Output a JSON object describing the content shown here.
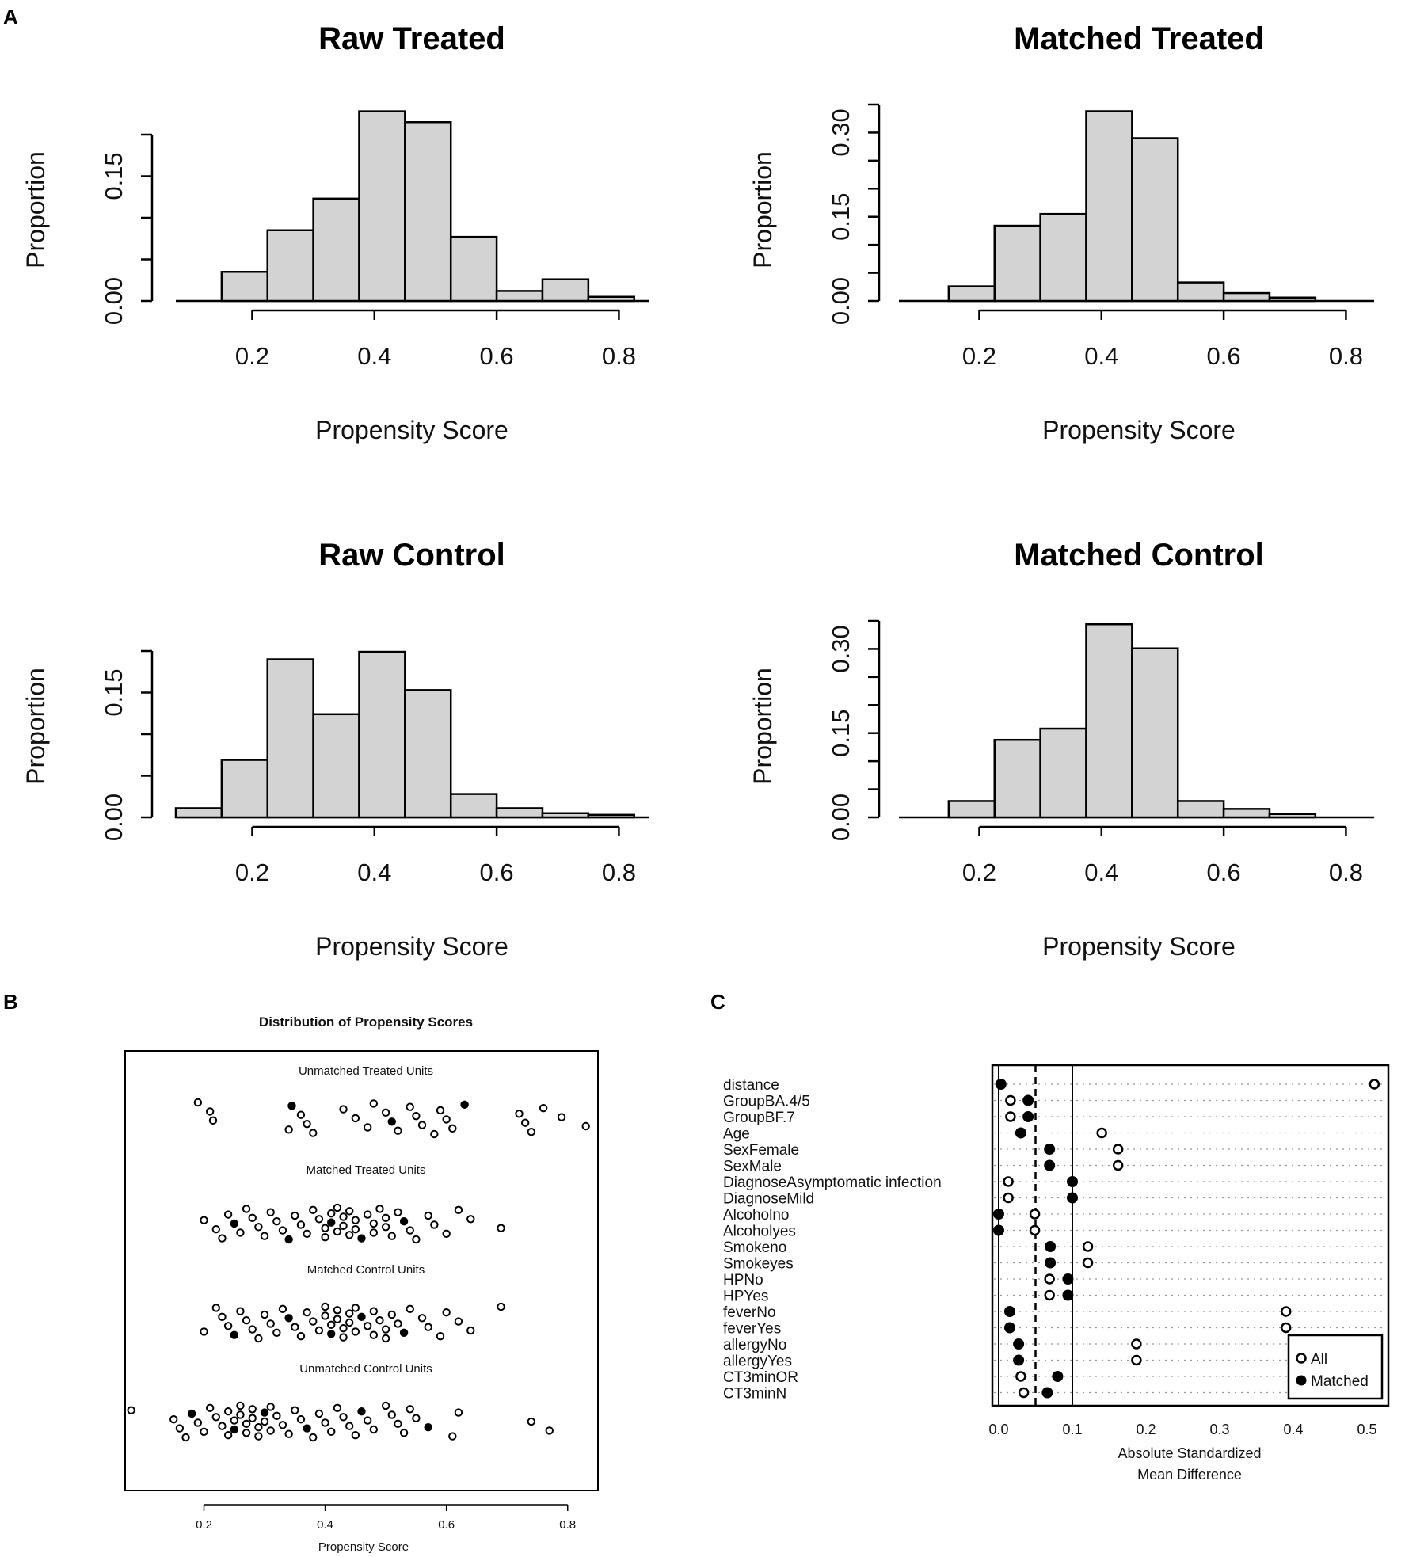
{
  "panel_labels": {
    "a": "A",
    "b": "B",
    "c": "C"
  },
  "chart_data": [
    {
      "id": "raw_treated",
      "type": "bar",
      "title": "Raw Treated",
      "xlabel": "Propensity Score",
      "ylabel": "Proportion",
      "bin_edges": [
        0.15,
        0.225,
        0.3,
        0.375,
        0.45,
        0.525,
        0.6,
        0.675,
        0.75,
        0.825
      ],
      "values": [
        0.035,
        0.085,
        0.123,
        0.228,
        0.215,
        0.077,
        0.012,
        0.026,
        0.005
      ],
      "xticks": [
        "0.2",
        "0.4",
        "0.6",
        "0.8"
      ],
      "yticks": [
        "0.00",
        "0.15"
      ],
      "xlim": [
        0.075,
        0.85
      ],
      "ylim": [
        0,
        0.2
      ]
    },
    {
      "id": "matched_treated",
      "type": "bar",
      "title": "Matched Treated",
      "xlabel": "Propensity Score",
      "ylabel": "Proportion",
      "bin_edges": [
        0.15,
        0.225,
        0.3,
        0.375,
        0.45,
        0.525,
        0.6,
        0.675,
        0.75
      ],
      "values": [
        0.026,
        0.134,
        0.155,
        0.338,
        0.29,
        0.033,
        0.014,
        0.006
      ],
      "xticks": [
        "0.2",
        "0.4",
        "0.6",
        "0.8"
      ],
      "yticks": [
        "0.00",
        "0.15",
        "0.30"
      ],
      "xlim": [
        0.075,
        0.85
      ],
      "ylim": [
        0,
        0.35
      ]
    },
    {
      "id": "raw_control",
      "type": "bar",
      "title": "Raw Control",
      "xlabel": "Propensity Score",
      "ylabel": "Proportion",
      "bin_edges": [
        0.075,
        0.15,
        0.225,
        0.3,
        0.375,
        0.45,
        0.525,
        0.6,
        0.675,
        0.75,
        0.825
      ],
      "values": [
        0.011,
        0.069,
        0.19,
        0.124,
        0.199,
        0.153,
        0.028,
        0.011,
        0.005,
        0.003
      ],
      "xticks": [
        "0.2",
        "0.4",
        "0.6",
        "0.8"
      ],
      "yticks": [
        "0.00",
        "0.15"
      ],
      "xlim": [
        0.075,
        0.85
      ],
      "ylim": [
        0,
        0.2
      ]
    },
    {
      "id": "matched_control",
      "type": "bar",
      "title": "Matched Control",
      "xlabel": "Propensity Score",
      "ylabel": "Proportion",
      "bin_edges": [
        0.15,
        0.225,
        0.3,
        0.375,
        0.45,
        0.525,
        0.6,
        0.675,
        0.75
      ],
      "values": [
        0.029,
        0.138,
        0.158,
        0.344,
        0.301,
        0.029,
        0.015,
        0.006
      ],
      "xticks": [
        "0.2",
        "0.4",
        "0.6",
        "0.8"
      ],
      "yticks": [
        "0.00",
        "0.15",
        "0.30"
      ],
      "xlim": [
        0.075,
        0.85
      ],
      "ylim": [
        0,
        0.35
      ]
    },
    {
      "id": "distribution",
      "type": "scatter",
      "title": "Distribution of Propensity Scores",
      "xlabel": "Propensity Score",
      "xticks": [
        "0.2",
        "0.4",
        "0.6",
        "0.8"
      ],
      "xlim": [
        0.07,
        0.85
      ],
      "groups": [
        {
          "name": "Unmatched Treated Units",
          "x": [
            0.19,
            0.21,
            0.215,
            0.34,
            0.345,
            0.36,
            0.37,
            0.38,
            0.43,
            0.45,
            0.47,
            0.48,
            0.5,
            0.51,
            0.52,
            0.54,
            0.55,
            0.56,
            0.58,
            0.59,
            0.6,
            0.61,
            0.63,
            0.72,
            0.73,
            0.74,
            0.76,
            0.79,
            0.83
          ]
        },
        {
          "name": "Matched Treated Units",
          "x": [
            0.2,
            0.22,
            0.23,
            0.24,
            0.25,
            0.26,
            0.27,
            0.28,
            0.29,
            0.3,
            0.31,
            0.32,
            0.33,
            0.34,
            0.35,
            0.36,
            0.37,
            0.38,
            0.39,
            0.4,
            0.4,
            0.41,
            0.41,
            0.42,
            0.42,
            0.43,
            0.43,
            0.44,
            0.44,
            0.45,
            0.45,
            0.46,
            0.47,
            0.48,
            0.48,
            0.49,
            0.5,
            0.5,
            0.51,
            0.52,
            0.53,
            0.54,
            0.55,
            0.57,
            0.58,
            0.6,
            0.62,
            0.64,
            0.69
          ]
        },
        {
          "name": "Matched Control Units",
          "x": [
            0.2,
            0.22,
            0.23,
            0.24,
            0.25,
            0.26,
            0.27,
            0.28,
            0.29,
            0.3,
            0.31,
            0.32,
            0.33,
            0.34,
            0.35,
            0.36,
            0.37,
            0.38,
            0.39,
            0.4,
            0.4,
            0.41,
            0.41,
            0.42,
            0.42,
            0.43,
            0.43,
            0.44,
            0.44,
            0.45,
            0.45,
            0.46,
            0.47,
            0.48,
            0.48,
            0.49,
            0.5,
            0.5,
            0.51,
            0.52,
            0.53,
            0.54,
            0.56,
            0.57,
            0.59,
            0.6,
            0.62,
            0.64,
            0.69
          ]
        },
        {
          "name": "Unmatched Control Units",
          "x": [
            0.08,
            0.15,
            0.16,
            0.17,
            0.18,
            0.19,
            0.2,
            0.21,
            0.22,
            0.23,
            0.24,
            0.24,
            0.25,
            0.25,
            0.26,
            0.26,
            0.27,
            0.27,
            0.28,
            0.28,
            0.29,
            0.29,
            0.3,
            0.3,
            0.31,
            0.31,
            0.32,
            0.33,
            0.34,
            0.35,
            0.36,
            0.37,
            0.38,
            0.39,
            0.4,
            0.41,
            0.42,
            0.43,
            0.44,
            0.45,
            0.46,
            0.47,
            0.48,
            0.5,
            0.51,
            0.52,
            0.53,
            0.54,
            0.55,
            0.57,
            0.61,
            0.62,
            0.74,
            0.77
          ]
        }
      ]
    },
    {
      "id": "balance",
      "type": "dot",
      "xlabel": "Absolute Standardized\nMean Difference",
      "xlabel_lines": [
        "Absolute Standardized",
        "Mean Difference"
      ],
      "xticks": [
        "0.0",
        "0.1",
        "0.2",
        "0.3",
        "0.4",
        "0.5"
      ],
      "xlim": [
        0,
        0.52
      ],
      "reference_lines": {
        "dashed": 0.05,
        "solid": 0.1
      },
      "legend": [
        "All",
        "Matched"
      ],
      "variables": [
        "distance",
        "GroupBA.4/5",
        "GroupBF.7",
        "Age",
        "SexFemale",
        "SexMale",
        "DiagnoseAsymptomatic infection",
        "DiagnoseMild",
        "Alcoholno",
        "Alcoholyes",
        "Smokeno",
        "Smokeyes",
        "HPNo",
        "HPYes",
        "feverNo",
        "feverYes",
        "allergyNo",
        "allergyYes",
        "CT3minOR",
        "CT3minN"
      ],
      "all": [
        0.51,
        0.016,
        0.016,
        0.14,
        0.162,
        0.162,
        0.013,
        0.013,
        0.049,
        0.049,
        0.121,
        0.121,
        0.069,
        0.069,
        0.39,
        0.39,
        0.187,
        0.187,
        0.03,
        0.034
      ],
      "matched": [
        0.003,
        0.04,
        0.04,
        0.03,
        0.069,
        0.069,
        0.1,
        0.1,
        0.0,
        0.0,
        0.07,
        0.07,
        0.094,
        0.094,
        0.015,
        0.015,
        0.027,
        0.027,
        0.08,
        0.066
      ]
    }
  ]
}
